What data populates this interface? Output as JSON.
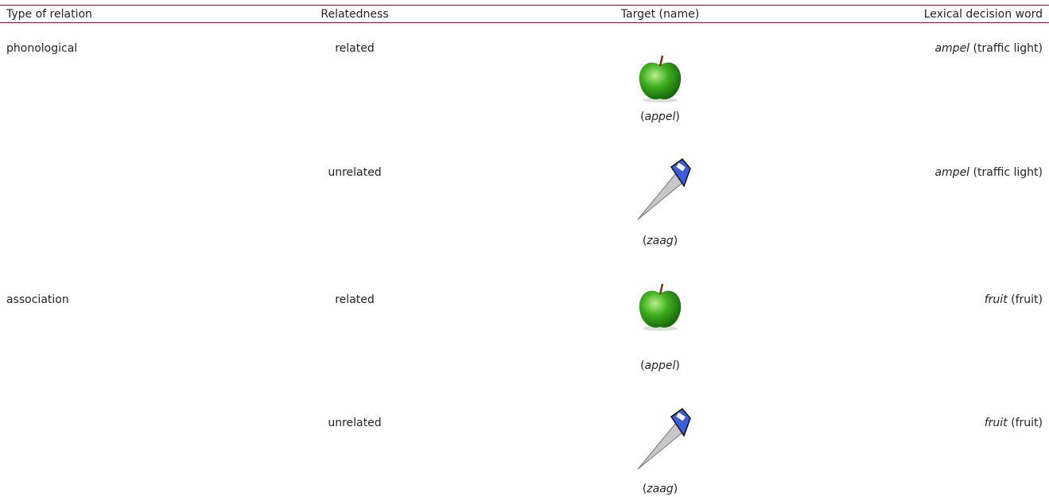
{
  "table": {
    "header": [
      "Type of relation",
      "Relatedness",
      "Target (name)",
      "Lexical decision word"
    ],
    "rows": [
      {
        "relation": "phonological",
        "relatedness": "related",
        "target_name": [
          "(",
          "appel",
          ")"
        ],
        "lexical_word": [
          "ampel",
          " (traffic light)"
        ]
      },
      {
        "relation": null,
        "relatedness": "unrelated",
        "target_name": [
          "(",
          "zaag",
          ")"
        ],
        "lexical_word": [
          "ampel",
          " (traffic light)"
        ]
      },
      {
        "relation": "association",
        "relatedness": "related",
        "target_name": [
          "(",
          "appel",
          ")"
        ],
        "lexical_word": [
          "fruit",
          " (fruit)"
        ]
      },
      {
        "relation": null,
        "relatedness": "unrelated",
        "target_name": [
          "(",
          "zaag",
          ")"
        ],
        "lexical_word": [
          "fruit",
          " (fruit)"
        ]
      }
    ]
  }
}
